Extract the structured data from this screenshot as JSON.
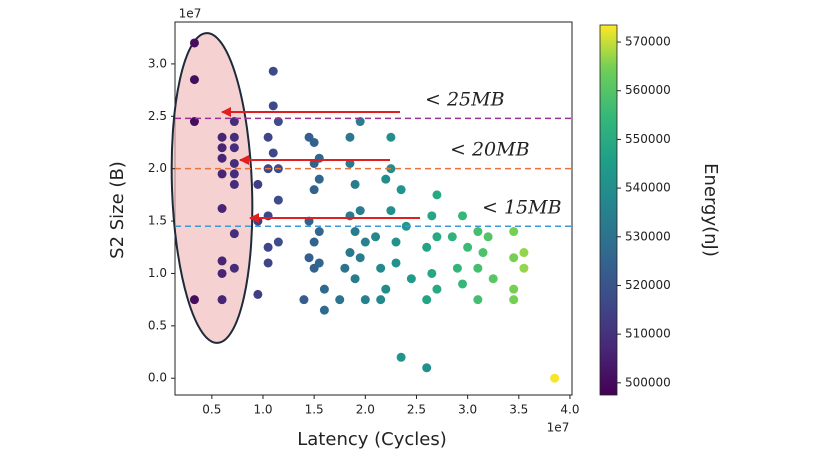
{
  "chart_data": {
    "type": "scatter",
    "xlabel": "Latency (Cycles)",
    "ylabel": "S2 Size (B)",
    "x_offset_label": "1e7",
    "y_offset_label": "1e7",
    "colorbar_label": "Energy(nJ)",
    "colormap": "viridis",
    "xlim": [
      0.14,
      4.02
    ],
    "ylim": [
      -0.16,
      3.4
    ],
    "clim": [
      497500,
      573500
    ],
    "xticks": [
      0.5,
      {
        "value": 1,
        "label": "1.0"
      },
      1.5,
      {
        "value": 2,
        "label": "2.0"
      },
      2.5,
      {
        "value": 3,
        "label": "3.0"
      },
      3.5,
      {
        "value": 4,
        "label": "4.0"
      }
    ],
    "yticks": [
      {
        "value": 0,
        "label": "0.0"
      },
      0.5,
      {
        "value": 1,
        "label": "1.0"
      },
      1.5,
      {
        "value": 2,
        "label": "2.0"
      },
      2.5,
      {
        "value": 3,
        "label": "3.0"
      }
    ],
    "cticks": [
      500000,
      510000,
      520000,
      530000,
      540000,
      550000,
      560000,
      570000
    ],
    "annotations": [
      {
        "text": "< 25MB",
        "y": 2.48,
        "color": "#9a2f96"
      },
      {
        "text": "< 20MB",
        "y": 2.0,
        "color": "#e8743b"
      },
      {
        "text": "< 15MB",
        "y": 1.45,
        "color": "#3b9bd6"
      }
    ],
    "x": [
      0.33,
      0.33,
      0.33,
      0.33,
      0.6,
      0.6,
      0.6,
      0.6,
      0.6,
      0.6,
      0.6,
      0.6,
      0.72,
      0.72,
      0.72,
      0.72,
      0.72,
      0.72,
      0.72,
      0.72,
      0.95,
      0.95,
      0.95,
      1.05,
      1.05,
      1.05,
      1.05,
      1.05,
      1.1,
      1.1,
      1.1,
      1.15,
      1.15,
      1.15,
      1.15,
      1.45,
      1.5,
      1.5,
      1.5,
      1.45,
      1.5,
      1.45,
      1.5,
      1.4,
      1.55,
      1.55,
      1.6,
      1.55,
      1.55,
      1.6,
      1.8,
      1.85,
      1.85,
      1.9,
      1.85,
      1.9,
      1.85,
      1.75,
      1.9,
      1.95,
      1.95,
      2.0,
      2.0,
      1.95,
      2.1,
      2.15,
      2.2,
      2.25,
      2.3,
      2.2,
      2.25,
      2.25,
      2.3,
      2.35,
      2.4,
      2.45,
      2.35,
      2.15,
      2.6,
      2.65,
      2.7,
      2.65,
      2.6,
      2.7,
      2.7,
      2.6,
      2.85,
      2.9,
      2.95,
      3.0,
      2.95,
      3.1,
      3.15,
      3.1,
      3.2,
      3.25,
      3.1,
      3.45,
      3.45,
      3.45,
      3.45,
      3.55,
      3.55,
      3.85
    ],
    "values": [
      3.2,
      2.85,
      2.45,
      0.75,
      2.3,
      2.2,
      2.1,
      1.95,
      1.62,
      1.12,
      1.0,
      0.75,
      2.45,
      2.3,
      2.2,
      2.05,
      1.95,
      1.85,
      1.38,
      1.05,
      1.85,
      1.5,
      0.8,
      2.3,
      2.0,
      1.55,
      1.25,
      1.1,
      2.93,
      2.6,
      2.15,
      2.45,
      2.0,
      1.7,
      1.3,
      2.3,
      2.25,
      2.05,
      1.8,
      1.5,
      1.3,
      1.15,
      1.05,
      0.75,
      2.1,
      1.9,
      0.65,
      1.4,
      1.1,
      0.85,
      1.05,
      2.3,
      2.05,
      1.85,
      1.55,
      1.4,
      1.2,
      0.75,
      0.95,
      2.45,
      1.6,
      1.3,
      0.75,
      1.15,
      1.35,
      1.05,
      1.9,
      1.6,
      1.3,
      0.85,
      2.3,
      2.0,
      1.1,
      1.8,
      1.45,
      0.95,
      0.2,
      0.75,
      1.25,
      1.55,
      1.75,
      1.0,
      0.75,
      1.35,
      0.85,
      0.1,
      1.35,
      1.05,
      1.55,
      1.25,
      0.9,
      1.4,
      1.2,
      0.75,
      1.35,
      0.95,
      1.05,
      1.4,
      1.15,
      0.85,
      0.75,
      1.2,
      1.05,
      0.0
    ],
    "color_values": [
      500500,
      500500,
      500500,
      500500,
      506000,
      506000,
      506000,
      506000,
      506000,
      506000,
      506000,
      506000,
      508500,
      508500,
      508500,
      508500,
      508500,
      508500,
      508500,
      508500,
      513500,
      513500,
      513500,
      515500,
      515500,
      515500,
      515500,
      515500,
      516500,
      516500,
      516500,
      517500,
      517500,
      517500,
      517500,
      523500,
      524500,
      524500,
      524500,
      523500,
      524500,
      523500,
      524500,
      522500,
      525500,
      525500,
      526500,
      525500,
      525500,
      526500,
      530500,
      532000,
      532000,
      533000,
      532000,
      533000,
      532000,
      529500,
      533000,
      534000,
      534000,
      535000,
      535000,
      534000,
      537000,
      538000,
      539000,
      540000,
      541000,
      539000,
      540000,
      540000,
      541000,
      542000,
      543000,
      544000,
      542000,
      538000,
      547000,
      548000,
      549000,
      548000,
      547000,
      549000,
      549000,
      540000,
      552500,
      553500,
      554500,
      555500,
      554500,
      557500,
      558500,
      557500,
      559500,
      560500,
      557500,
      564500,
      564500,
      564500,
      564500,
      566500,
      566500,
      573000
    ]
  }
}
